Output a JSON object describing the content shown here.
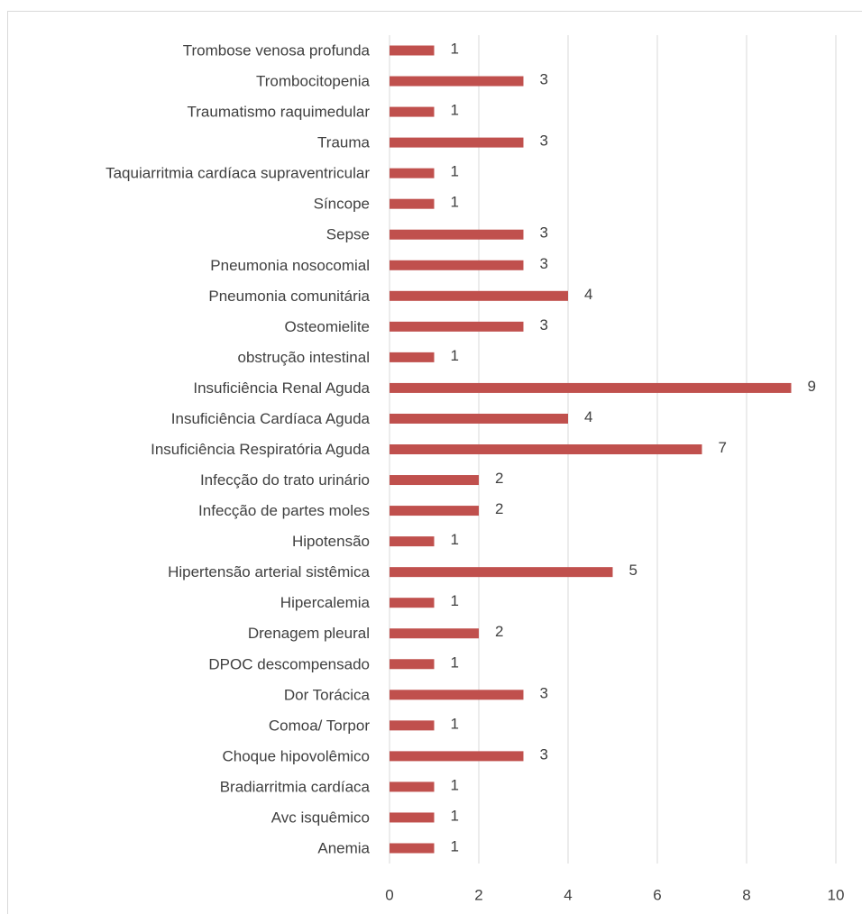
{
  "chart_data": {
    "type": "bar",
    "orientation": "horizontal",
    "color": "#c0504d",
    "grid": true,
    "categories": [
      "Trombose venosa profunda",
      "Trombocitopenia",
      "Traumatismo raquimedular",
      "Trauma",
      "Taquiarritmia cardíaca supraventricular",
      "Síncope",
      "Sepse",
      "Pneumonia nosocomial",
      "Pneumonia comunitária",
      "Osteomielite",
      "obstrução intestinal",
      "Insuficiência Renal Aguda",
      "Insuficiência Cardíaca Aguda",
      "Insuficiência Respiratória Aguda",
      "Infecção do trato urinário",
      "Infecção de partes moles",
      "Hipotensão",
      "Hipertensão arterial sistêmica",
      "Hipercalemia",
      "Drenagem pleural",
      "DPOC descompensado",
      "Dor Torácica",
      "Comoa/ Torpor",
      "Choque hipovolêmico",
      "Bradiarritmia cardíaca",
      "Avc isquêmico",
      "Anemia"
    ],
    "values": [
      1,
      3,
      1,
      3,
      1,
      1,
      3,
      3,
      4,
      3,
      1,
      9,
      4,
      7,
      2,
      2,
      1,
      5,
      1,
      2,
      1,
      3,
      1,
      3,
      1,
      1,
      1
    ],
    "xlim": [
      0,
      10
    ],
    "xticks": [
      0,
      2,
      4,
      6,
      8,
      10
    ]
  }
}
